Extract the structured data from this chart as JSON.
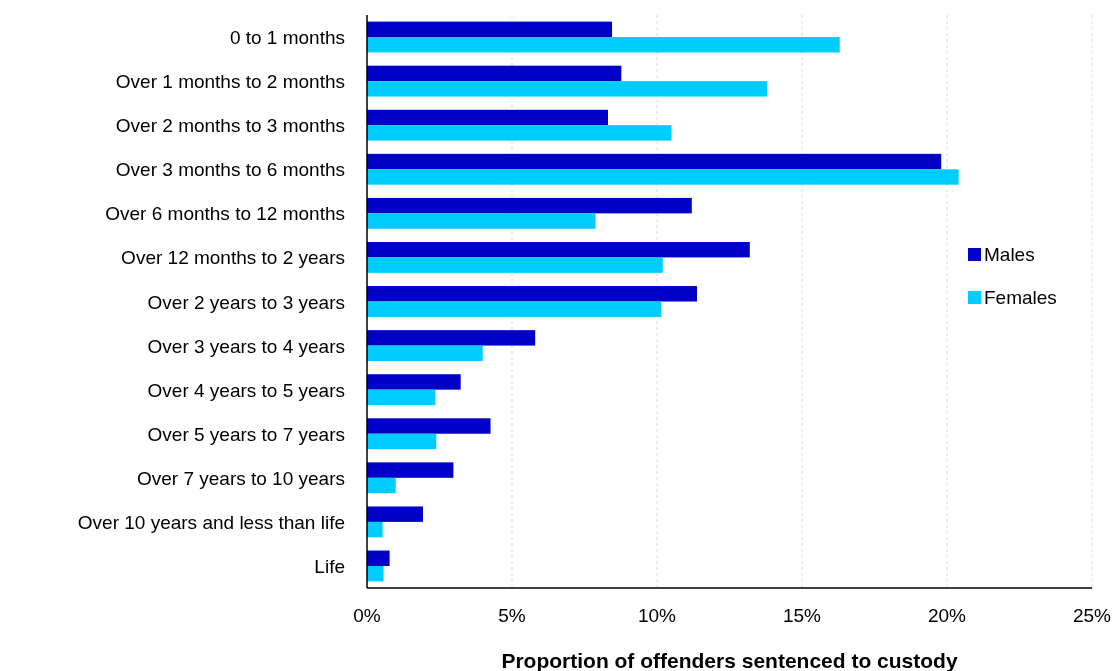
{
  "chart_data": {
    "type": "bar",
    "orientation": "horizontal",
    "xlabel": "Proportion of offenders sentenced to custody",
    "categories": [
      "0 to 1 months",
      "Over 1 months to 2 months",
      "Over 2 months to 3 months",
      "Over 3 months to 6 months",
      "Over 6 months to 12 months",
      "Over 12 months to 2 years",
      "Over 2 years to 3 years",
      "Over 3 years to 4 years",
      "Over 4 years to 5 years",
      "Over 5 years to 7 years",
      "Over 7 years to 10 years",
      "Over 10 years and less than life",
      "Life"
    ],
    "series": [
      {
        "name": "Males",
        "color": "#0000c8",
        "values": [
          8.45,
          8.77,
          8.31,
          19.8,
          11.2,
          13.2,
          11.38,
          5.8,
          3.23,
          4.26,
          2.98,
          1.93,
          0.78
        ]
      },
      {
        "name": "Females",
        "color": "#00ccff",
        "values": [
          16.3,
          13.8,
          10.5,
          20.4,
          7.88,
          10.2,
          10.15,
          3.99,
          2.36,
          2.39,
          0.99,
          0.54,
          0.57
        ]
      }
    ],
    "xlim": [
      0,
      25
    ],
    "xticks": [
      {
        "value": 0,
        "label": "0%"
      },
      {
        "value": 5,
        "label": "5%"
      },
      {
        "value": 10,
        "label": "10%"
      },
      {
        "value": 15,
        "label": "15%"
      },
      {
        "value": 20,
        "label": "20%"
      },
      {
        "value": 25,
        "label": "25%"
      }
    ],
    "grid": "x",
    "legend": "right"
  }
}
